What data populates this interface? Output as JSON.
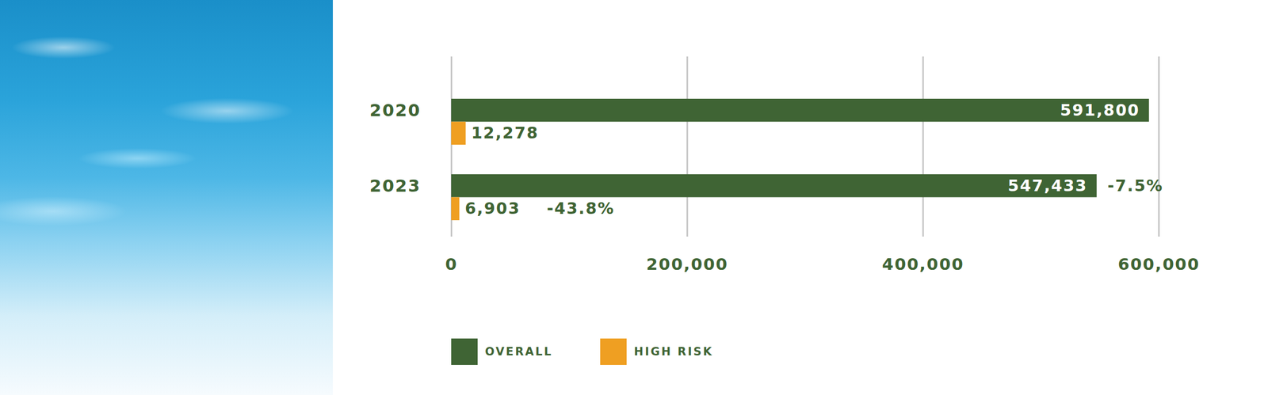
{
  "chart_data": {
    "type": "bar",
    "orientation": "horizontal",
    "categories": [
      "2020",
      "2023"
    ],
    "series": [
      {
        "name": "OVERALL",
        "color": "#3f6434",
        "values": [
          591800,
          547433
        ],
        "value_labels": [
          "591,800",
          "547,433"
        ]
      },
      {
        "name": "HIGH RISK",
        "color": "#ef9f22",
        "values": [
          12278,
          6903
        ],
        "value_labels": [
          "12,278",
          "6,903"
        ]
      }
    ],
    "xlim": [
      0,
      600000
    ],
    "xticks": [
      0,
      {
        "value": 200000,
        "label": "200,000"
      },
      {
        "value": 400000,
        "label": "400,000"
      },
      {
        "value": 600000,
        "label": "600,000"
      }
    ],
    "grid": true,
    "data_labels": true,
    "legend": "bottom",
    "annotations": [
      {
        "text": "-7.5%",
        "category": "2023",
        "series": "OVERALL"
      },
      {
        "text": "-43.8%",
        "category": "2023",
        "series": "HIGH RISK"
      }
    ]
  }
}
